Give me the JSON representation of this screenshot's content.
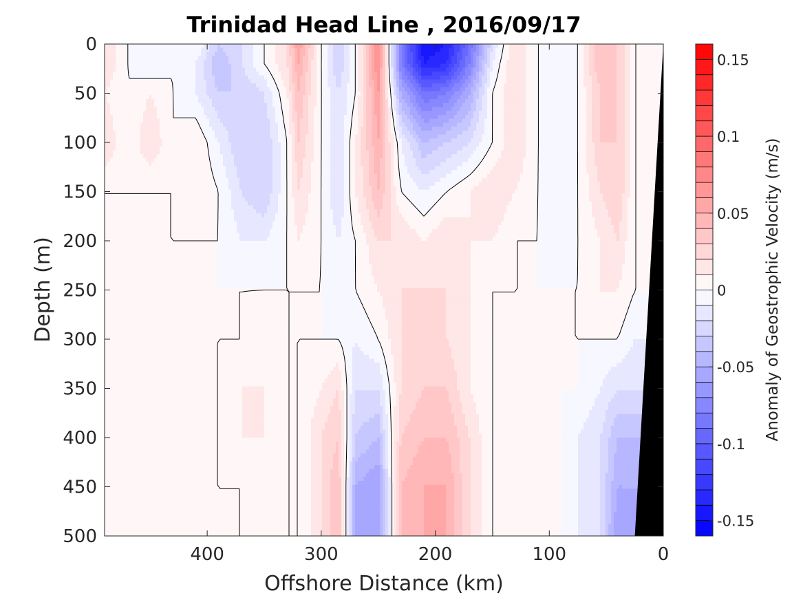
{
  "chart_data": {
    "type": "heatmap",
    "title": "Trinidad Head Line , 2016/09/17",
    "xlabel": "Offshore Distance (km)",
    "ylabel": "Depth (m)",
    "colorbar_label": "Anomaly of Geostrophic Velocity (m/s)",
    "x_reversed": true,
    "y_reversed": true,
    "xlim": [
      0,
      490
    ],
    "ylim": [
      0,
      500
    ],
    "xticks": [
      400,
      300,
      200,
      100,
      0
    ],
    "yticks": [
      0,
      50,
      100,
      150,
      200,
      250,
      300,
      350,
      400,
      450,
      500
    ],
    "clim": [
      -0.16,
      0.16
    ],
    "cbar_ticks": [
      0.15,
      0.1,
      0.05,
      0,
      -0.05,
      -0.1,
      -0.15
    ],
    "cbar_tick_labels": [
      "0.15",
      "0.1",
      "0.05",
      "0",
      "-0.05",
      "-0.1",
      "-0.15"
    ],
    "colormap": {
      "negative": "#0000ff",
      "zero": "#ffffff",
      "positive": "#ff0000"
    },
    "contour_levels": 32,
    "zero_contour_color": "#000000",
    "bathymetry_color": "#000000",
    "bathymetry": [
      {
        "x": 0,
        "depth": 0
      },
      {
        "x": 25,
        "depth": 500
      }
    ],
    "depth_axis": [
      0,
      20,
      50,
      100,
      150,
      200,
      250,
      300,
      350,
      400,
      450,
      500
    ],
    "x_axis": [
      490,
      470,
      450,
      430,
      410,
      390,
      370,
      350,
      330,
      320,
      300,
      285,
      270,
      250,
      230,
      210,
      190,
      170,
      150,
      130,
      110,
      90,
      75,
      55,
      40,
      25
    ],
    "velocity": [
      [
        0.02,
        0.0,
        -0.01,
        0.0,
        0.0,
        -0.03,
        -0.02,
        0.0,
        0.02,
        0.06,
        0.0,
        -0.03,
        0.0,
        0.07,
        -0.08,
        -0.15,
        -0.14,
        -0.09,
        -0.02,
        0.02,
        0.0,
        -0.01,
        0.0,
        0.04,
        0.03,
        0.0
      ],
      [
        0.02,
        0.0,
        -0.01,
        0.0,
        -0.01,
        -0.04,
        -0.02,
        0.0,
        0.02,
        0.05,
        0.0,
        -0.03,
        0.0,
        0.07,
        -0.08,
        -0.14,
        -0.13,
        -0.08,
        -0.01,
        0.02,
        0.0,
        -0.01,
        0.0,
        0.04,
        0.03,
        0.0
      ],
      [
        0.01,
        0.0,
        0.01,
        0.0,
        -0.01,
        -0.03,
        -0.03,
        -0.02,
        0.01,
        0.04,
        0.0,
        -0.02,
        0.0,
        0.06,
        -0.05,
        -0.09,
        -0.08,
        -0.05,
        0.0,
        0.02,
        0.0,
        -0.01,
        0.0,
        0.03,
        0.03,
        0.0
      ],
      [
        0.02,
        0.0,
        0.02,
        0.0,
        0.01,
        -0.01,
        -0.03,
        -0.03,
        0.0,
        0.03,
        0.0,
        -0.02,
        0.01,
        0.05,
        -0.01,
        -0.04,
        -0.03,
        -0.02,
        0.0,
        0.02,
        0.0,
        -0.01,
        0.0,
        0.03,
        0.03,
        0.0
      ],
      [
        0.0,
        0.0,
        0.0,
        0.0,
        0.01,
        0.0,
        -0.02,
        -0.03,
        0.0,
        0.02,
        0.0,
        -0.02,
        0.01,
        0.04,
        0.0,
        -0.01,
        0.0,
        0.01,
        0.02,
        0.01,
        0.0,
        -0.01,
        0.0,
        0.02,
        0.03,
        0.0
      ],
      [
        0.0,
        0.0,
        0.0,
        0.0,
        0.0,
        0.0,
        -0.01,
        -0.01,
        0.0,
        0.01,
        0.0,
        -0.01,
        0.0,
        0.02,
        0.02,
        0.01,
        0.02,
        0.01,
        0.01,
        0.0,
        0.0,
        -0.01,
        0.0,
        0.01,
        0.02,
        0.0
      ],
      [
        0.0,
        0.0,
        0.0,
        0.0,
        0.0,
        0.0,
        0.0,
        0.0,
        0.0,
        0.0,
        0.0,
        -0.01,
        0.0,
        0.01,
        0.02,
        0.02,
        0.02,
        0.01,
        0.0,
        0.0,
        0.0,
        0.0,
        0.0,
        0.01,
        0.01,
        0.0
      ],
      [
        0.0,
        0.0,
        0.0,
        0.0,
        0.0,
        0.0,
        0.0,
        0.01,
        0.0,
        0.0,
        0.0,
        0.0,
        -0.01,
        0.0,
        0.02,
        0.02,
        0.02,
        0.01,
        0.0,
        0.0,
        0.0,
        0.0,
        0.0,
        0.0,
        0.0,
        -0.01
      ],
      [
        0.0,
        0.0,
        0.0,
        0.0,
        0.0,
        0.0,
        0.01,
        0.01,
        0.0,
        0.0,
        0.01,
        0.02,
        -0.02,
        -0.02,
        0.02,
        0.03,
        0.03,
        0.01,
        0.0,
        0.0,
        0.0,
        0.0,
        0.0,
        -0.01,
        -0.02,
        -0.02
      ],
      [
        0.0,
        0.0,
        0.0,
        0.0,
        0.0,
        0.0,
        0.01,
        0.01,
        0.0,
        0.0,
        0.02,
        0.03,
        -0.03,
        -0.04,
        0.03,
        0.04,
        0.04,
        0.02,
        0.0,
        0.0,
        0.0,
        0.0,
        -0.01,
        -0.02,
        -0.04,
        -0.04
      ],
      [
        0.0,
        0.0,
        0.0,
        0.0,
        0.0,
        0.0,
        0.0,
        0.01,
        0.0,
        0.0,
        0.02,
        0.04,
        -0.05,
        -0.06,
        0.04,
        0.05,
        0.05,
        0.02,
        0.0,
        0.0,
        0.0,
        0.0,
        -0.01,
        -0.02,
        -0.05,
        -0.05
      ],
      [
        0.0,
        0.0,
        0.0,
        0.0,
        0.0,
        0.0,
        0.0,
        0.01,
        0.0,
        0.0,
        0.02,
        0.04,
        -0.05,
        -0.06,
        0.04,
        0.05,
        0.05,
        0.02,
        0.0,
        0.0,
        0.0,
        0.0,
        -0.01,
        -0.02,
        -0.06,
        -0.06
      ]
    ]
  }
}
